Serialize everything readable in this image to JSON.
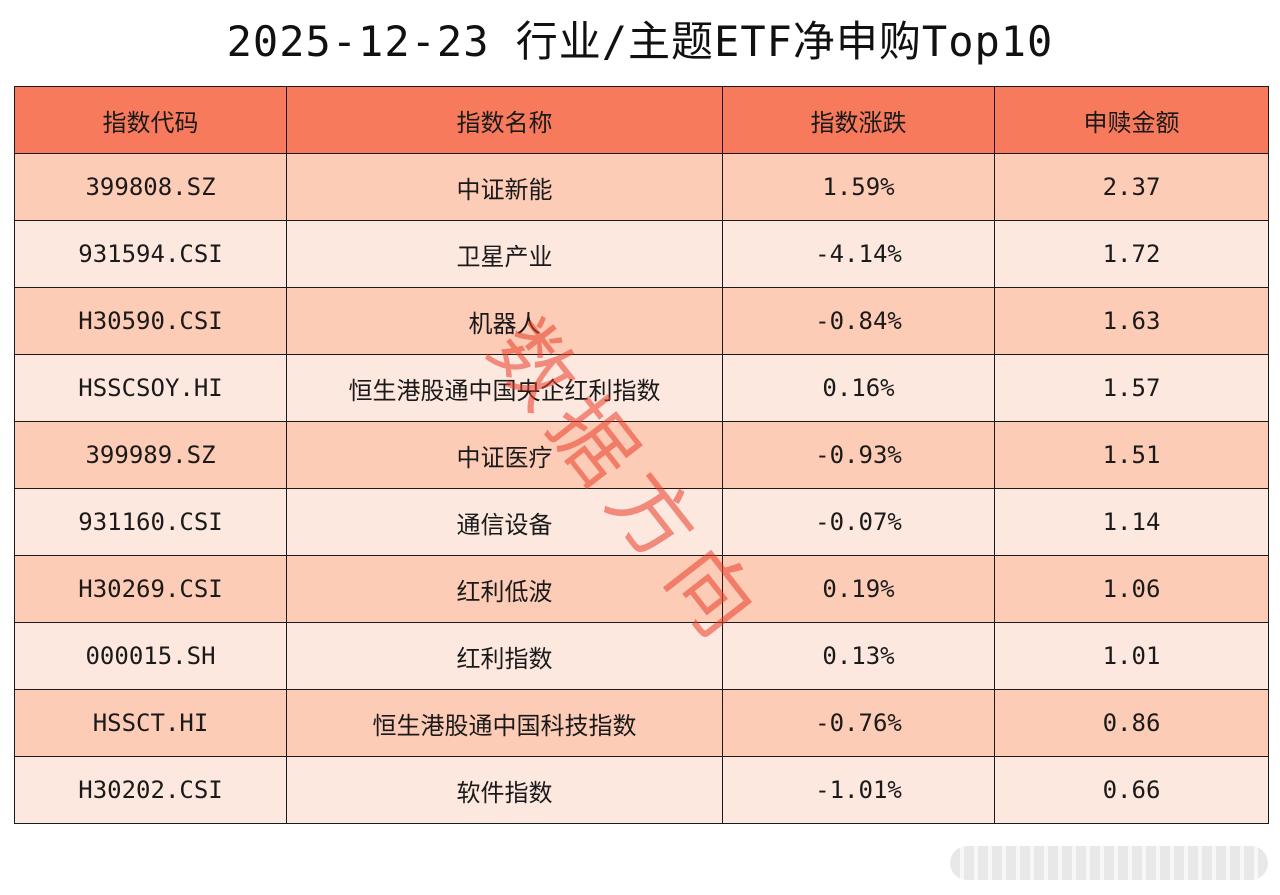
{
  "title": "2025-12-23 行业/主题ETF净申购Top10",
  "columns": [
    "指数代码",
    "指数名称",
    "指数涨跌",
    "申赎金额"
  ],
  "rows": [
    {
      "code": "399808.SZ",
      "name": "中证新能",
      "change": "1.59%",
      "amount": "2.37"
    },
    {
      "code": "931594.CSI",
      "name": "卫星产业",
      "change": "-4.14%",
      "amount": "1.72"
    },
    {
      "code": "H30590.CSI",
      "name": "机器人",
      "change": "-0.84%",
      "amount": "1.63"
    },
    {
      "code": "HSSCSOY.HI",
      "name": "恒生港股通中国央企红利指数",
      "change": "0.16%",
      "amount": "1.57"
    },
    {
      "code": "399989.SZ",
      "name": "中证医疗",
      "change": "-0.93%",
      "amount": "1.51"
    },
    {
      "code": "931160.CSI",
      "name": "通信设备",
      "change": "-0.07%",
      "amount": "1.14"
    },
    {
      "code": "H30269.CSI",
      "name": "红利低波",
      "change": "0.19%",
      "amount": "1.06"
    },
    {
      "code": "000015.SH",
      "name": "红利指数",
      "change": "0.13%",
      "amount": "1.01"
    },
    {
      "code": "HSSCT.HI",
      "name": "恒生港股通中国科技指数",
      "change": "-0.76%",
      "amount": "0.86"
    },
    {
      "code": "H30202.CSI",
      "name": "软件指数",
      "change": "-1.01%",
      "amount": "0.66"
    }
  ],
  "watermark": "数据方向",
  "colors": {
    "header_bg": "#f77a5c",
    "row_odd_bg": "#fdccb6",
    "row_even_bg": "#fde8df",
    "watermark": "#e83c28"
  }
}
